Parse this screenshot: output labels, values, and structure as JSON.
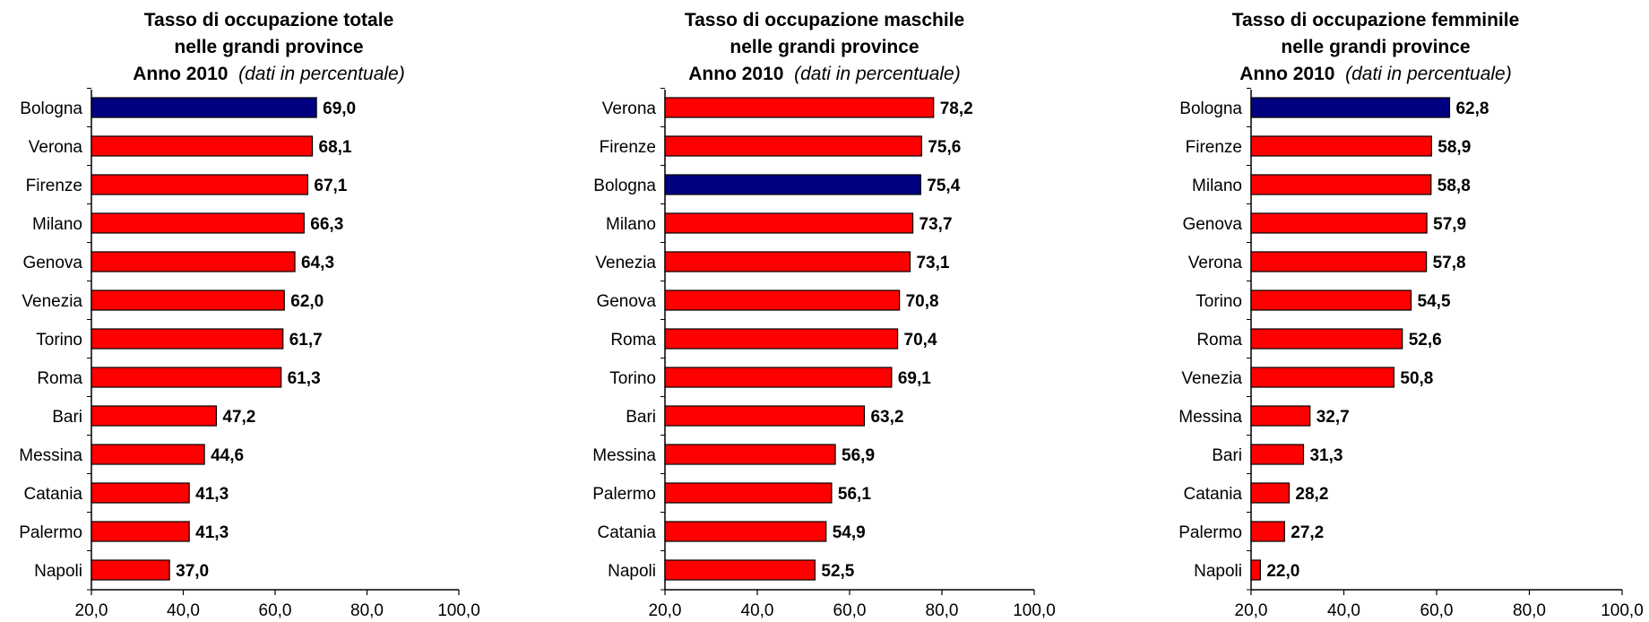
{
  "chart_data": [
    {
      "type": "bar",
      "orientation": "horizontal",
      "title_lines": [
        "Tasso di occupazione totale",
        "nelle grandi province"
      ],
      "subtitle_bold": "Anno  2010",
      "subtitle_italic": "(dati in percentuale)",
      "categories": [
        "Bologna",
        "Verona",
        "Firenze",
        "Milano",
        "Genova",
        "Venezia",
        "Torino",
        "Roma",
        "Bari",
        "Messina",
        "Catania",
        "Palermo",
        "Napoli"
      ],
      "values": [
        69.0,
        68.1,
        67.1,
        66.3,
        64.3,
        62.0,
        61.7,
        61.3,
        47.2,
        44.6,
        41.3,
        41.3,
        37.0
      ],
      "value_labels": [
        "69,0",
        "68,1",
        "67,1",
        "66,3",
        "64,3",
        "62,0",
        "61,7",
        "61,3",
        "47,2",
        "44,6",
        "41,3",
        "41,3",
        "37,0"
      ],
      "highlight": [
        "Bologna"
      ],
      "xlim": [
        20,
        100
      ],
      "xticks": [
        20,
        40,
        60,
        80,
        100
      ],
      "xtick_labels": [
        "20,0",
        "40,0",
        "60,0",
        "80,0",
        "100,0"
      ],
      "grid": false
    },
    {
      "type": "bar",
      "orientation": "horizontal",
      "title_lines": [
        "Tasso di occupazione maschile",
        "nelle grandi province"
      ],
      "subtitle_bold": "Anno  2010",
      "subtitle_italic": "(dati in percentuale)",
      "categories": [
        "Verona",
        "Firenze",
        "Bologna",
        "Milano",
        "Venezia",
        "Genova",
        "Roma",
        "Torino",
        "Bari",
        "Messina",
        "Palermo",
        "Catania",
        "Napoli"
      ],
      "values": [
        78.2,
        75.6,
        75.4,
        73.7,
        73.1,
        70.8,
        70.4,
        69.1,
        63.2,
        56.9,
        56.1,
        54.9,
        52.5
      ],
      "value_labels": [
        "78,2",
        "75,6",
        "75,4",
        "73,7",
        "73,1",
        "70,8",
        "70,4",
        "69,1",
        "63,2",
        "56,9",
        "56,1",
        "54,9",
        "52,5"
      ],
      "highlight": [
        "Bologna"
      ],
      "xlim": [
        20,
        100
      ],
      "xticks": [
        20,
        40,
        60,
        80,
        100
      ],
      "xtick_labels": [
        "20,0",
        "40,0",
        "60,0",
        "80,0",
        "100,0"
      ],
      "grid": false
    },
    {
      "type": "bar",
      "orientation": "horizontal",
      "title_lines": [
        "Tasso di occupazione femminile",
        "nelle grandi province"
      ],
      "subtitle_bold": "Anno  2010",
      "subtitle_italic": "(dati in percentuale)",
      "categories": [
        "Bologna",
        "Firenze",
        "Milano",
        "Genova",
        "Verona",
        "Torino",
        "Roma",
        "Venezia",
        "Messina",
        "Bari",
        "Catania",
        "Palermo",
        "Napoli"
      ],
      "values": [
        62.8,
        58.9,
        58.8,
        57.9,
        57.8,
        54.5,
        52.6,
        50.8,
        32.7,
        31.3,
        28.2,
        27.2,
        22.0
      ],
      "value_labels": [
        "62,8",
        "58,9",
        "58,8",
        "57,9",
        "57,8",
        "54,5",
        "52,6",
        "50,8",
        "32,7",
        "31,3",
        "28,2",
        "27,2",
        "22,0"
      ],
      "highlight": [
        "Bologna"
      ],
      "xlim": [
        20,
        100
      ],
      "xticks": [
        20,
        40,
        60,
        80,
        100
      ],
      "xtick_labels": [
        "20,0",
        "40,0",
        "60,0",
        "80,0",
        "100,0"
      ],
      "grid": false
    }
  ],
  "colors": {
    "bar": "#ff0000",
    "highlight_bar": "#000080",
    "bar_stroke": "#000000",
    "axis": "#000000"
  }
}
